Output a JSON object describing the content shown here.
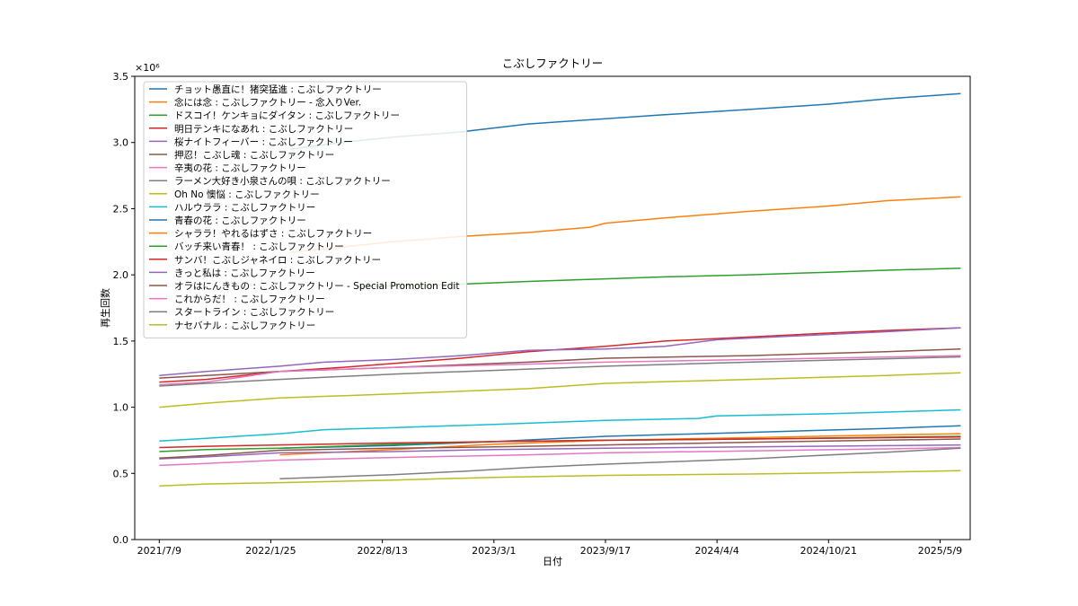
{
  "chart_data": {
    "type": "line",
    "title": "こぶしファクトリー",
    "xlabel": "日付",
    "ylabel": "再生回数",
    "y_offset_label": "×10⁶",
    "ylim": [
      0,
      3500000
    ],
    "y_ticks": [
      0,
      500000,
      1000000,
      1500000,
      2000000,
      2500000,
      3000000,
      3500000
    ],
    "y_tick_labels": [
      "0.0",
      "0.5",
      "1.0",
      "1.5",
      "2.0",
      "2.5",
      "3.0",
      "3.5"
    ],
    "xlim": [
      "2021-05-26",
      "2025-07-02"
    ],
    "x_ticks": [
      "2021-07-09",
      "2022-01-25",
      "2022-08-13",
      "2023-03-01",
      "2023-09-17",
      "2024-04-04",
      "2024-10-21",
      "2025-05-09"
    ],
    "x_tick_labels": [
      "2021/7/9",
      "2022/1/25",
      "2022/8/13",
      "2023/3/1",
      "2023/9/17",
      "2024/4/4",
      "2024/10/21",
      "2025/5/9"
    ],
    "legend_position": "upper-left",
    "grid": false,
    "series": [
      {
        "name": "チョット愚直に！猪突猛進 : こぶしファクトリー",
        "color": "#1f77b4",
        "x": [
          "2022-03-01",
          "2022-06-01",
          "2022-09-01",
          "2023-01-01",
          "2023-05-01",
          "2023-09-17",
          "2024-01-01",
          "2024-06-01",
          "2024-10-21",
          "2025-02-01",
          "2025-06-15"
        ],
        "y": [
          2950000,
          3000000,
          3040000,
          3080000,
          3140000,
          3180000,
          3210000,
          3250000,
          3290000,
          3330000,
          3370000
        ]
      },
      {
        "name": "念には念 : こぶしファクトリー - 念入りVer.",
        "color": "#ff7f0e",
        "x": [
          "2022-03-01",
          "2022-06-01",
          "2022-09-01",
          "2023-01-01",
          "2023-05-01",
          "2023-08-20",
          "2023-09-17",
          "2024-01-01",
          "2024-06-01",
          "2024-10-21",
          "2025-02-01",
          "2025-06-15"
        ],
        "y": [
          2170000,
          2210000,
          2250000,
          2290000,
          2320000,
          2360000,
          2390000,
          2430000,
          2480000,
          2520000,
          2560000,
          2590000
        ]
      },
      {
        "name": "ドスコイ！ケンキョにダイタン : こぶしファクトリー",
        "color": "#2ca02c",
        "x": [
          "2022-07-01",
          "2023-01-01",
          "2023-05-01",
          "2023-09-17",
          "2024-01-01",
          "2024-06-01",
          "2024-10-21",
          "2025-02-01",
          "2025-06-15"
        ],
        "y": [
          1910000,
          1930000,
          1950000,
          1970000,
          1985000,
          2000000,
          2020000,
          2035000,
          2050000
        ]
      },
      {
        "name": "明日テンキになあれ : こぶしファクトリー",
        "color": "#d62728",
        "x": [
          "2021-07-09",
          "2021-10-01",
          "2022-02-10",
          "2022-06-01",
          "2022-09-01",
          "2023-01-01",
          "2023-05-01",
          "2023-09-17",
          "2024-01-01",
          "2024-06-01",
          "2024-10-21",
          "2025-02-01",
          "2025-06-15"
        ],
        "y": [
          1190000,
          1210000,
          1270000,
          1300000,
          1330000,
          1370000,
          1420000,
          1460000,
          1500000,
          1530000,
          1560000,
          1580000,
          1600000
        ]
      },
      {
        "name": "桜ナイトフィーバー : こぶしファクトリー",
        "color": "#9467bd",
        "x": [
          "2021-07-09",
          "2021-10-01",
          "2022-02-10",
          "2022-05-01",
          "2022-09-01",
          "2023-01-01",
          "2023-05-01",
          "2023-09-17",
          "2024-01-01",
          "2024-04-04",
          "2024-10-21",
          "2025-02-01",
          "2025-06-15"
        ],
        "y": [
          1240000,
          1270000,
          1310000,
          1340000,
          1360000,
          1390000,
          1430000,
          1440000,
          1460000,
          1510000,
          1550000,
          1570000,
          1600000
        ]
      },
      {
        "name": "押忍！こぶし魂 : こぶしファクトリー",
        "color": "#8c564b",
        "x": [
          "2021-07-09",
          "2021-10-01",
          "2022-02-10",
          "2022-09-01",
          "2023-05-01",
          "2023-09-17",
          "2024-06-01",
          "2025-02-01",
          "2025-06-15"
        ],
        "y": [
          1220000,
          1240000,
          1270000,
          1300000,
          1340000,
          1370000,
          1390000,
          1420000,
          1440000
        ]
      },
      {
        "name": "辛夷の花 : こぶしファクトリー",
        "color": "#e377c2",
        "x": [
          "2021-07-09",
          "2021-10-01",
          "2022-02-10",
          "2022-09-01",
          "2023-05-01",
          "2023-09-17",
          "2024-06-01",
          "2025-02-01",
          "2025-06-15"
        ],
        "y": [
          560000,
          575000,
          600000,
          620000,
          640000,
          655000,
          670000,
          685000,
          695000
        ]
      },
      {
        "name": "ラーメン大好き小泉さんの唄 : こぶしファクトリー",
        "color": "#7f7f7f",
        "x": [
          "2022-02-10",
          "2022-09-01",
          "2023-01-01",
          "2023-05-01",
          "2023-09-17",
          "2024-06-01",
          "2025-02-01",
          "2025-06-15"
        ],
        "y": [
          460000,
          490000,
          515000,
          545000,
          570000,
          610000,
          660000,
          690000
        ]
      },
      {
        "name": "Oh No 懊悩 : こぶしファクトリー",
        "color": "#bcbd22",
        "x": [
          "2021-07-09",
          "2021-10-01",
          "2022-02-10",
          "2022-09-01",
          "2023-05-01",
          "2023-09-17",
          "2024-06-01",
          "2025-02-01",
          "2025-06-15"
        ],
        "y": [
          1000000,
          1030000,
          1070000,
          1100000,
          1140000,
          1180000,
          1210000,
          1240000,
          1260000
        ]
      },
      {
        "name": "ハルウララ : こぶしファクトリー",
        "color": "#17becf",
        "x": [
          "2021-07-09",
          "2021-10-01",
          "2022-02-10",
          "2022-05-01",
          "2022-09-01",
          "2023-03-01",
          "2023-09-17",
          "2024-03-01",
          "2024-04-04",
          "2024-10-21",
          "2025-06-15"
        ],
        "y": [
          745000,
          765000,
          800000,
          830000,
          845000,
          870000,
          900000,
          915000,
          935000,
          950000,
          980000
        ]
      },
      {
        "name": "青春の花 : こぶしファクトリー",
        "color": "#1f77b4",
        "x": [
          "2022-02-10",
          "2022-09-01",
          "2023-03-01",
          "2023-09-17",
          "2024-06-01",
          "2025-02-01",
          "2025-06-15"
        ],
        "y": [
          690000,
          710000,
          740000,
          780000,
          810000,
          840000,
          860000
        ]
      },
      {
        "name": "シャララ！やれるはずさ : こぶしファクトリー",
        "color": "#ff7f0e",
        "x": [
          "2022-02-10",
          "2022-09-01",
          "2023-03-01",
          "2023-09-17",
          "2024-06-01",
          "2025-02-01",
          "2025-06-15"
        ],
        "y": [
          640000,
          680000,
          720000,
          750000,
          770000,
          790000,
          800000
        ]
      },
      {
        "name": "バッチ来い青春！ : こぶしファクトリー",
        "color": "#2ca02c",
        "x": [
          "2021-07-09",
          "2021-10-01",
          "2022-02-10",
          "2022-09-01",
          "2023-03-01",
          "2023-09-17",
          "2024-06-01",
          "2025-06-15"
        ],
        "y": [
          665000,
          680000,
          690000,
          720000,
          740000,
          750000,
          760000,
          780000
        ]
      },
      {
        "name": "サンバ！こぶしジャネイロ : こぶしファクトリー",
        "color": "#d62728",
        "x": [
          "2021-07-09",
          "2021-10-01",
          "2022-02-10",
          "2022-09-01",
          "2023-03-01",
          "2023-09-17",
          "2024-06-01",
          "2025-06-15"
        ],
        "y": [
          695000,
          705000,
          715000,
          730000,
          740000,
          750000,
          760000,
          775000
        ]
      },
      {
        "name": "きっと私は : こぶしファクトリー",
        "color": "#9467bd",
        "x": [
          "2021-07-09",
          "2021-10-01",
          "2022-02-10",
          "2022-09-01",
          "2023-03-01",
          "2023-09-17",
          "2024-06-01",
          "2025-06-15"
        ],
        "y": [
          610000,
          625000,
          655000,
          665000,
          680000,
          690000,
          700000,
          715000
        ]
      },
      {
        "name": "オラはにんきもの : こぶしファクトリー - Special Promotion Edit",
        "color": "#8c564b",
        "x": [
          "2021-07-09",
          "2021-10-01",
          "2022-02-10",
          "2022-09-01",
          "2023-03-01",
          "2023-09-17",
          "2024-06-01",
          "2025-06-15"
        ],
        "y": [
          615000,
          635000,
          675000,
          690000,
          700000,
          715000,
          735000,
          760000
        ]
      },
      {
        "name": "これからだ！ : こぶしファクトリー",
        "color": "#e377c2",
        "x": [
          "2021-07-09",
          "2021-10-01",
          "2022-02-10",
          "2022-09-01",
          "2023-09-17",
          "2024-06-01",
          "2025-06-15"
        ],
        "y": [
          1170000,
          1190000,
          1270000,
          1300000,
          1340000,
          1360000,
          1390000
        ]
      },
      {
        "name": "スタートライン : こぶしファクトリー",
        "color": "#7f7f7f",
        "x": [
          "2021-07-09",
          "2021-10-01",
          "2022-02-10",
          "2022-09-01",
          "2023-09-17",
          "2024-06-01",
          "2025-06-15"
        ],
        "y": [
          1160000,
          1180000,
          1210000,
          1250000,
          1310000,
          1340000,
          1380000
        ]
      },
      {
        "name": "ナセバナル : こぶしファクトリー",
        "color": "#bcbd22",
        "x": [
          "2021-07-09",
          "2021-10-01",
          "2022-02-10",
          "2022-09-01",
          "2023-03-01",
          "2023-09-17",
          "2024-06-01",
          "2025-02-01",
          "2025-06-15"
        ],
        "y": [
          405000,
          420000,
          430000,
          450000,
          470000,
          485000,
          495000,
          510000,
          520000
        ]
      }
    ]
  }
}
